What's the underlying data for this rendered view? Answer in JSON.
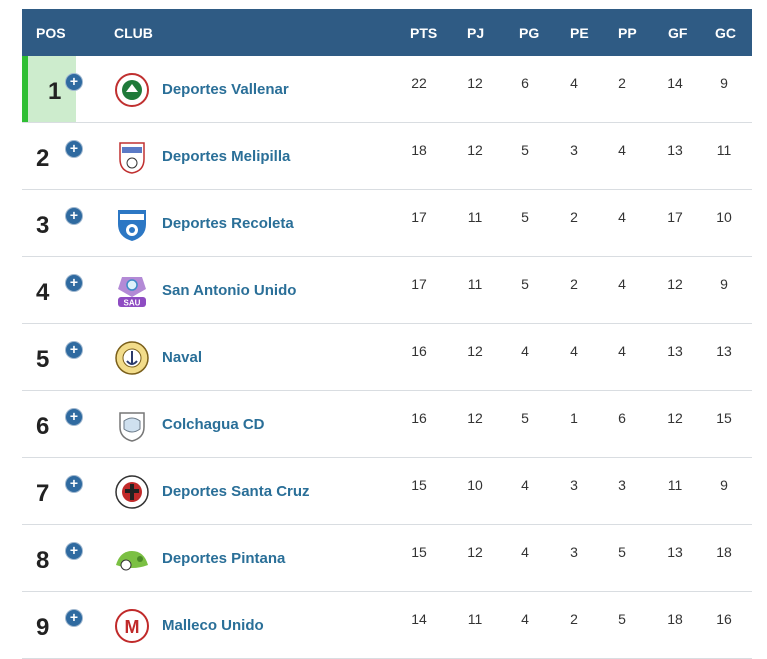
{
  "header": {
    "pos": "POS",
    "club": "CLUB",
    "pts": "PTS",
    "pj": "PJ",
    "pg": "PG",
    "pe": "PE",
    "pp": "PP",
    "gf": "GF",
    "gc": "GC"
  },
  "colors": {
    "header_bg": "#2f5b84",
    "club_link": "#2a6f98",
    "leader_bar": "#2fbf34",
    "leader_bg": "#cdeccd"
  },
  "rows": [
    {
      "pos": "1",
      "club": "Deportes Vallenar",
      "pts": "22",
      "pj": "12",
      "pg": "6",
      "pe": "4",
      "pp": "2",
      "gf": "14",
      "gc": "9",
      "icon": "deportes-vallenar-crest-icon"
    },
    {
      "pos": "2",
      "club": "Deportes Melipilla",
      "pts": "18",
      "pj": "12",
      "pg": "5",
      "pe": "3",
      "pp": "4",
      "gf": "13",
      "gc": "11",
      "icon": "deportes-melipilla-crest-icon"
    },
    {
      "pos": "3",
      "club": "Deportes Recoleta",
      "pts": "17",
      "pj": "11",
      "pg": "5",
      "pe": "2",
      "pp": "4",
      "gf": "17",
      "gc": "10",
      "icon": "deportes-recoleta-crest-icon"
    },
    {
      "pos": "4",
      "club": "San Antonio Unido",
      "pts": "17",
      "pj": "11",
      "pg": "5",
      "pe": "2",
      "pp": "4",
      "gf": "12",
      "gc": "9",
      "icon": "san-antonio-unido-crest-icon"
    },
    {
      "pos": "5",
      "club": "Naval",
      "pts": "16",
      "pj": "12",
      "pg": "4",
      "pe": "4",
      "pp": "4",
      "gf": "13",
      "gc": "13",
      "icon": "naval-crest-icon"
    },
    {
      "pos": "6",
      "club": "Colchagua CD",
      "pts": "16",
      "pj": "12",
      "pg": "5",
      "pe": "1",
      "pp": "6",
      "gf": "12",
      "gc": "15",
      "icon": "colchagua-crest-icon"
    },
    {
      "pos": "7",
      "club": "Deportes Santa Cruz",
      "pts": "15",
      "pj": "10",
      "pg": "4",
      "pe": "3",
      "pp": "3",
      "gf": "11",
      "gc": "9",
      "icon": "deportes-santa-cruz-crest-icon"
    },
    {
      "pos": "8",
      "club": "Deportes Pintana",
      "pts": "15",
      "pj": "12",
      "pg": "4",
      "pe": "3",
      "pp": "5",
      "gf": "13",
      "gc": "18",
      "icon": "deportes-pintana-crest-icon"
    },
    {
      "pos": "9",
      "club": "Malleco Unido",
      "pts": "14",
      "pj": "11",
      "pg": "4",
      "pe": "2",
      "pp": "5",
      "gf": "18",
      "gc": "16",
      "icon": "malleco-unido-crest-icon"
    }
  ]
}
